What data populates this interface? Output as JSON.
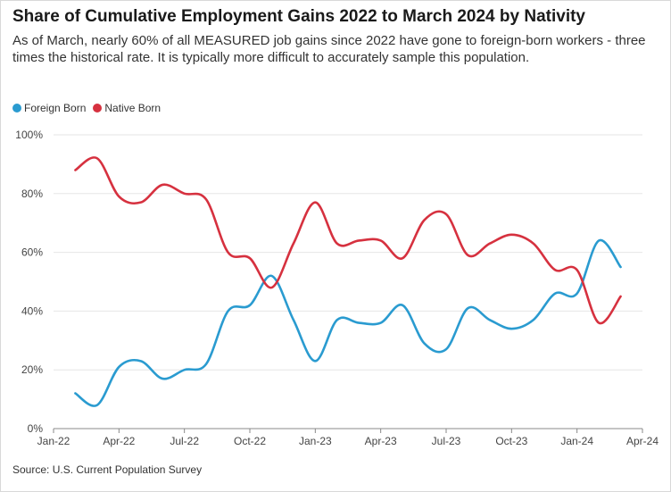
{
  "title": "Share of Cumulative Employment Gains 2022 to March 2024 by Nativity",
  "subtitle": "As of March, nearly 60% of all MEASURED job gains since 2022 have gone to foreign-born workers - three times the historical rate. It is typically more difficult to accurately sample this population.",
  "source": "Source: U.S. Current Population Survey",
  "colors": {
    "foreign": "#2a9bd0",
    "native": "#d6313f",
    "grid": "#e6e6e6",
    "axis": "#888888"
  },
  "chart_data": {
    "type": "line",
    "x_unit": "month",
    "x_range": [
      "2022-01",
      "2024-04"
    ],
    "ylim": [
      0,
      100
    ],
    "grid": true,
    "legend_position": "top-left",
    "x_ticks": [
      {
        "label": "Jan-22",
        "date": "2022-01"
      },
      {
        "label": "Apr-22",
        "date": "2022-04"
      },
      {
        "label": "Jul-22",
        "date": "2022-07"
      },
      {
        "label": "Oct-22",
        "date": "2022-10"
      },
      {
        "label": "Jan-23",
        "date": "2023-01"
      },
      {
        "label": "Apr-23",
        "date": "2023-04"
      },
      {
        "label": "Jul-23",
        "date": "2023-07"
      },
      {
        "label": "Oct-23",
        "date": "2023-10"
      },
      {
        "label": "Jan-24",
        "date": "2024-01"
      },
      {
        "label": "Apr-24",
        "date": "2024-04"
      }
    ],
    "y_ticks": [
      {
        "label": "0%",
        "value": 0
      },
      {
        "label": "20%",
        "value": 20
      },
      {
        "label": "40%",
        "value": 40
      },
      {
        "label": "60%",
        "value": 60
      },
      {
        "label": "80%",
        "value": 80
      },
      {
        "label": "100%",
        "value": 100
      }
    ],
    "x": [
      "2022-02",
      "2022-03",
      "2022-04",
      "2022-05",
      "2022-06",
      "2022-07",
      "2022-08",
      "2022-09",
      "2022-10",
      "2022-11",
      "2022-12",
      "2023-01",
      "2023-02",
      "2023-03",
      "2023-04",
      "2023-05",
      "2023-06",
      "2023-07",
      "2023-08",
      "2023-09",
      "2023-10",
      "2023-11",
      "2023-12",
      "2024-01",
      "2024-02",
      "2024-03"
    ],
    "series": [
      {
        "name": "Foreign Born",
        "key": "foreign",
        "values": [
          12,
          8,
          21,
          23,
          17,
          20,
          22,
          40,
          42,
          52,
          37,
          23,
          37,
          36,
          36,
          42,
          29,
          27,
          41,
          37,
          34,
          37,
          46,
          46,
          64,
          55
        ]
      },
      {
        "name": "Native Born",
        "key": "native",
        "values": [
          88,
          92,
          79,
          77,
          83,
          80,
          78,
          60,
          58,
          48,
          63,
          77,
          63,
          64,
          64,
          58,
          71,
          73,
          59,
          63,
          66,
          63,
          54,
          54,
          36,
          45
        ]
      }
    ]
  }
}
